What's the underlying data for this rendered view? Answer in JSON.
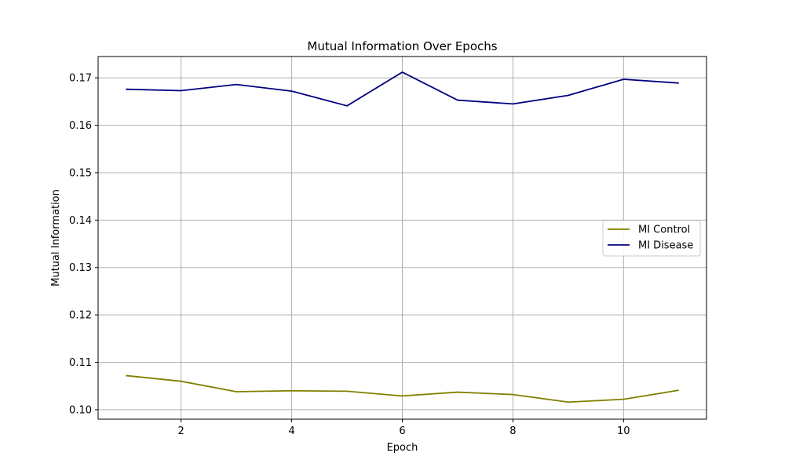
{
  "chart_data": {
    "type": "line",
    "title": "Mutual Information Over Epochs",
    "xlabel": "Epoch",
    "ylabel": "Mutual Information",
    "xlim": [
      0.5,
      11.5
    ],
    "ylim": [
      0.098,
      0.1745
    ],
    "x_ticks": [
      2,
      4,
      6,
      8,
      10
    ],
    "y_ticks": [
      0.1,
      0.11,
      0.12,
      0.13,
      0.14,
      0.15,
      0.16,
      0.17
    ],
    "y_tick_labels": [
      "0.10",
      "0.11",
      "0.12",
      "0.13",
      "0.14",
      "0.15",
      "0.16",
      "0.17"
    ],
    "grid": true,
    "legend_position": "center-right",
    "x": [
      1,
      2,
      3,
      4,
      5,
      6,
      7,
      8,
      9,
      10,
      11
    ],
    "series": [
      {
        "name": "MI Control",
        "color": "#808000",
        "values": [
          0.1072,
          0.106,
          0.1038,
          0.104,
          0.1039,
          0.1029,
          0.1037,
          0.1032,
          0.1016,
          0.1022,
          0.1041
        ]
      },
      {
        "name": "MI Disease",
        "color": "#000080",
        "values": [
          0.1676,
          0.1673,
          0.1686,
          0.1672,
          0.1641,
          0.1712,
          0.1653,
          0.1645,
          0.1663,
          0.1697,
          0.1689
        ]
      }
    ]
  }
}
